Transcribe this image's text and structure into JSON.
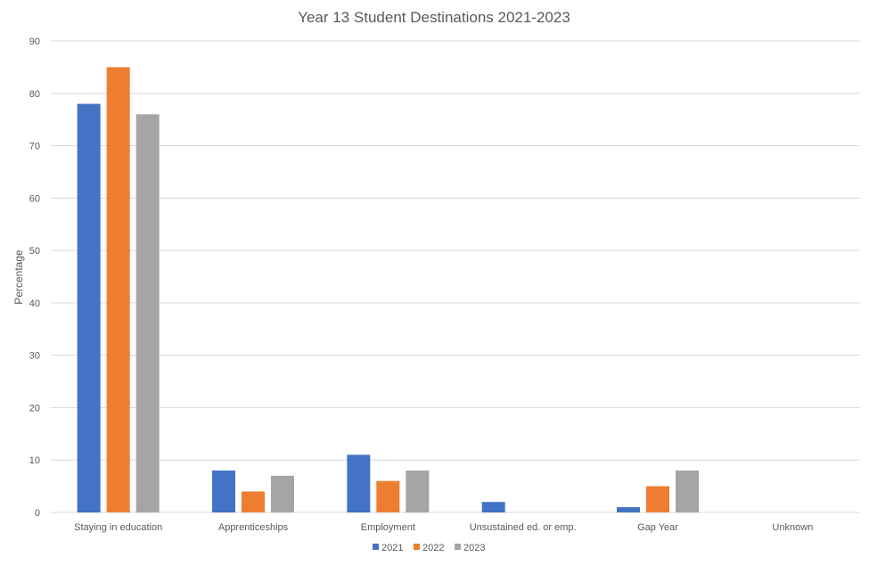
{
  "chart_data": {
    "type": "bar",
    "title": "Year 13 Student Destinations 2021-2023",
    "xlabel": "",
    "ylabel": "Percentage",
    "ylim": [
      0,
      90
    ],
    "yticks": [
      0,
      10,
      20,
      30,
      40,
      50,
      60,
      70,
      80,
      90
    ],
    "grid": true,
    "legend_position": "bottom",
    "categories": [
      "Staying in education",
      "Apprenticeships",
      "Employment",
      "Unsustained ed. or emp.",
      "Gap Year",
      "Unknown"
    ],
    "series": [
      {
        "name": "2021",
        "color": "#4472c4",
        "values": [
          78,
          8,
          11,
          2,
          1,
          0
        ]
      },
      {
        "name": "2022",
        "color": "#ed7d31",
        "values": [
          85,
          4,
          6,
          0,
          5,
          0
        ]
      },
      {
        "name": "2023",
        "color": "#a5a5a5",
        "values": [
          76,
          7,
          8,
          0,
          8,
          0
        ]
      }
    ]
  }
}
